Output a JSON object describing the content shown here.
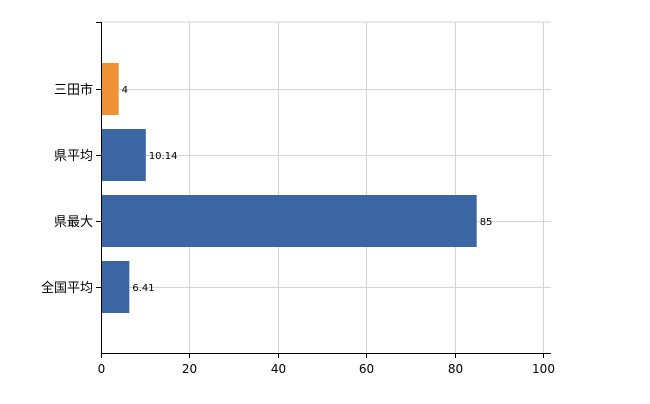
{
  "chart_data": {
    "type": "bar",
    "orientation": "horizontal",
    "categories": [
      "三田市",
      "県平均",
      "県最大",
      "全国平均"
    ],
    "values": [
      4,
      10.14,
      85,
      6.41
    ],
    "data_labels": [
      "4",
      "10.14",
      "85",
      "6.41"
    ],
    "colors": [
      "#ee9233",
      "#3a67a4",
      "#3a67a4",
      "#3a67a4"
    ],
    "xlim": [
      0,
      100
    ],
    "x_ticks": [
      0,
      20,
      40,
      60,
      80,
      100
    ],
    "x_tick_labels": [
      "0",
      "20",
      "40",
      "60",
      "80",
      "100"
    ],
    "grid": true,
    "legend": "none",
    "title": "",
    "xlabel": "",
    "ylabel": ""
  }
}
